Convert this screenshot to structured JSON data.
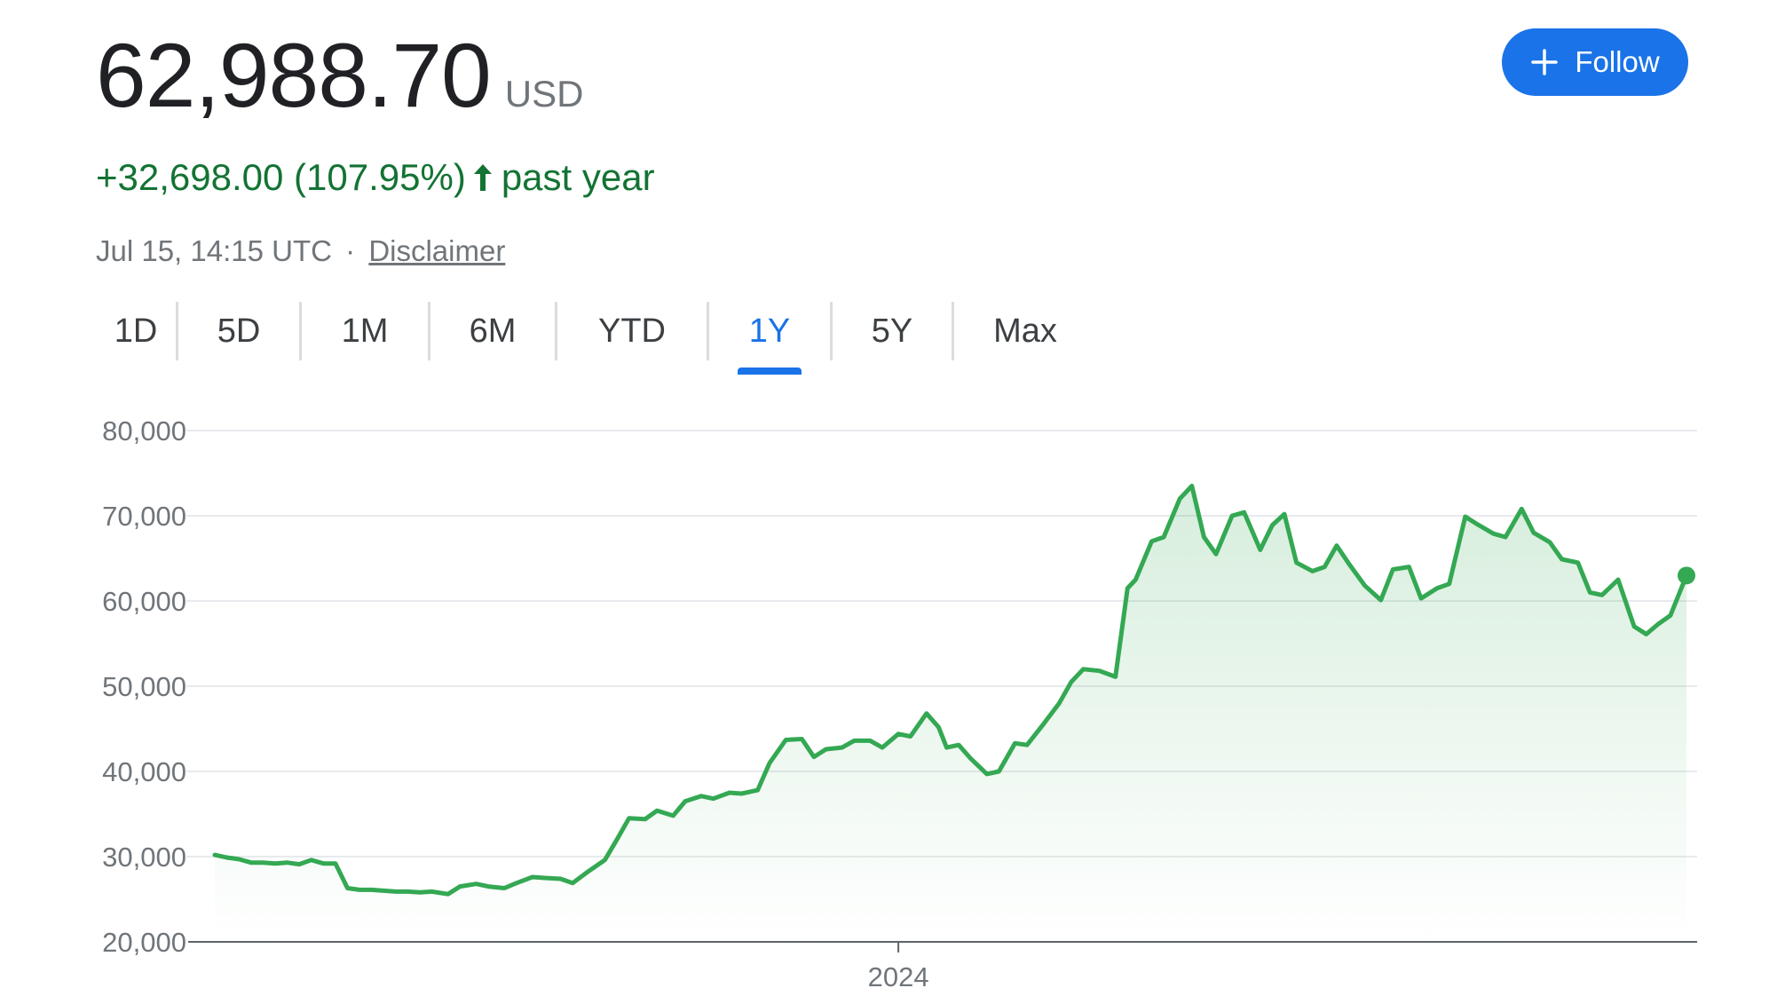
{
  "quote": {
    "price": "62,988.70",
    "currency": "USD",
    "change_text": "+32,698.00 (107.95%)",
    "period_text": "past year",
    "timestamp": "Jul 15, 14:15 UTC",
    "separator": "·",
    "disclaimer": "Disclaimer"
  },
  "follow_button": {
    "label": "Follow",
    "icon": "plus-icon"
  },
  "range_tabs": {
    "items": [
      "1D",
      "5D",
      "1M",
      "6M",
      "YTD",
      "1Y",
      "5Y",
      "Max"
    ],
    "selected": "1Y"
  },
  "colors": {
    "up_green": "#137333",
    "line_green": "#34a853",
    "accent_blue": "#1a73e8",
    "muted_text": "#70757a",
    "grid": "#e8eaed"
  },
  "chart_data": {
    "type": "area",
    "x_label_ticks": [
      "2024"
    ],
    "y_ticks": [
      "80,000",
      "70,000",
      "60,000",
      "50,000",
      "40,000",
      "30,000",
      "20,000"
    ],
    "ylim": [
      20000,
      80000
    ],
    "grid": true,
    "last_point_marker": true,
    "series": [
      {
        "x": [
          "2023-07-15",
          "2023-07-18",
          "2023-07-21",
          "2023-07-24",
          "2023-07-27",
          "2023-07-30",
          "2023-08-02",
          "2023-08-05",
          "2023-08-08",
          "2023-08-11",
          "2023-08-14",
          "2023-08-17",
          "2023-08-20",
          "2023-08-23",
          "2023-08-26",
          "2023-08-29",
          "2023-09-01",
          "2023-09-04",
          "2023-09-07",
          "2023-09-11",
          "2023-09-14",
          "2023-09-18",
          "2023-09-21",
          "2023-09-25",
          "2023-09-28",
          "2023-10-02",
          "2023-10-05",
          "2023-10-09",
          "2023-10-12",
          "2023-10-16",
          "2023-10-20",
          "2023-10-23",
          "2023-10-26",
          "2023-10-30",
          "2023-11-02",
          "2023-11-06",
          "2023-11-09",
          "2023-11-13",
          "2023-11-16",
          "2023-11-20",
          "2023-11-23",
          "2023-11-27",
          "2023-11-30",
          "2023-12-04",
          "2023-12-08",
          "2023-12-11",
          "2023-12-14",
          "2023-12-18",
          "2023-12-21",
          "2023-12-25",
          "2023-12-28",
          "2024-01-01",
          "2024-01-04",
          "2024-01-08",
          "2024-01-11",
          "2024-01-13",
          "2024-01-16",
          "2024-01-19",
          "2024-01-23",
          "2024-01-26",
          "2024-01-30",
          "2024-02-02",
          "2024-02-06",
          "2024-02-10",
          "2024-02-13",
          "2024-02-16",
          "2024-02-20",
          "2024-02-24",
          "2024-02-27",
          "2024-02-29",
          "2024-03-04",
          "2024-03-07",
          "2024-03-11",
          "2024-03-14",
          "2024-03-17",
          "2024-03-20",
          "2024-03-24",
          "2024-03-27",
          "2024-03-31",
          "2024-04-03",
          "2024-04-06",
          "2024-04-09",
          "2024-04-13",
          "2024-04-16",
          "2024-04-19",
          "2024-04-22",
          "2024-04-26",
          "2024-04-30",
          "2024-05-03",
          "2024-05-07",
          "2024-05-10",
          "2024-05-14",
          "2024-05-17",
          "2024-05-21",
          "2024-05-24",
          "2024-05-28",
          "2024-05-31",
          "2024-06-04",
          "2024-06-07",
          "2024-06-11",
          "2024-06-14",
          "2024-06-18",
          "2024-06-21",
          "2024-06-24",
          "2024-06-28",
          "2024-07-02",
          "2024-07-05",
          "2024-07-08",
          "2024-07-11",
          "2024-07-15"
        ],
        "values": [
          30200,
          29900,
          29700,
          29300,
          29300,
          29200,
          29300,
          29100,
          29600,
          29200,
          29200,
          26300,
          26100,
          26100,
          26000,
          25900,
          25900,
          25800,
          25900,
          25600,
          26500,
          26800,
          26500,
          26300,
          26900,
          27600,
          27500,
          27400,
          26900,
          28300,
          29600,
          32000,
          34500,
          34400,
          35400,
          34800,
          36500,
          37100,
          36800,
          37500,
          37400,
          37800,
          41000,
          43700,
          43800,
          41700,
          42600,
          42800,
          43600,
          43600,
          42800,
          44400,
          44100,
          46800,
          45200,
          42800,
          43100,
          41500,
          39700,
          40000,
          43300,
          43100,
          45500,
          48000,
          50500,
          52000,
          51800,
          51100,
          61500,
          62500,
          67000,
          67500,
          72000,
          73500,
          67500,
          65500,
          70000,
          70400,
          66000,
          68900,
          70200,
          64500,
          63500,
          64000,
          66500,
          64400,
          61800,
          60100,
          63700,
          64000,
          60300,
          61500,
          62000,
          69900,
          69000,
          67900,
          67500,
          70800,
          68000,
          66900,
          64900,
          64500,
          61000,
          60700,
          62500,
          57000,
          56100,
          57300,
          58300,
          62988
        ]
      }
    ]
  }
}
